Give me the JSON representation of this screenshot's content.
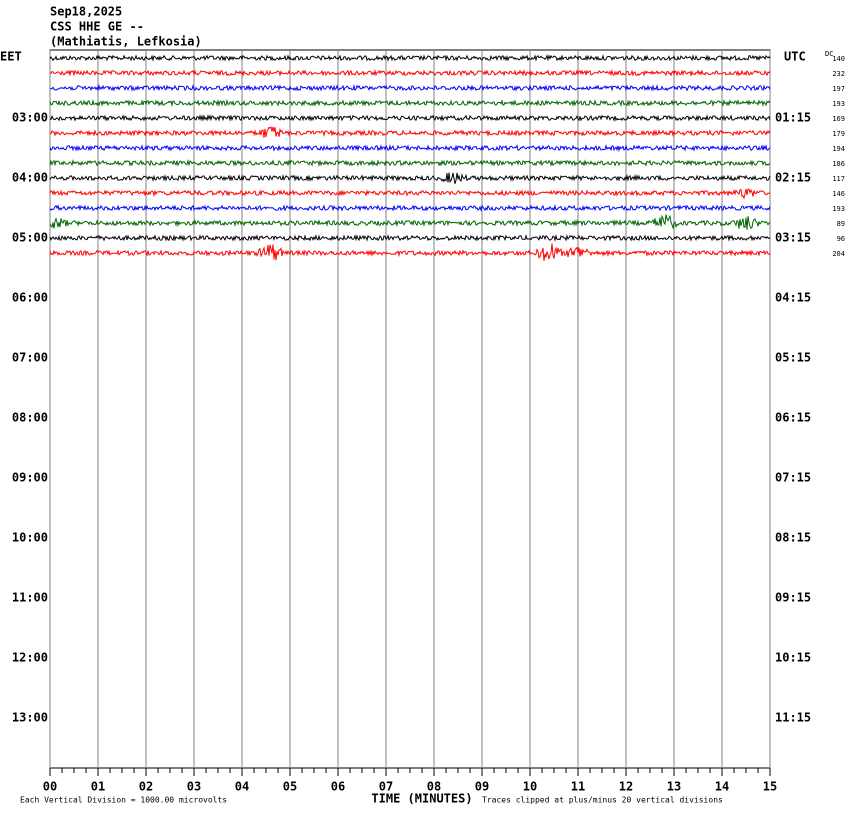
{
  "chart_data": {
    "type": "helicorder",
    "title_lines": [
      "Sep18,2025",
      "CSS HHE GE --",
      "(Mathiatis, Lefkosia)"
    ],
    "left_zone": "EET",
    "right_zone": "UTC",
    "dc_header": "DC",
    "trace_colors": [
      "#000000",
      "#ff0000",
      "#0000ff",
      "#006400"
    ],
    "dc_values": [
      140,
      232,
      197,
      193,
      169,
      179,
      194,
      186,
      117,
      146,
      193,
      89,
      96,
      204
    ],
    "hour_labels": [
      {
        "left": "03:00",
        "right": "01:15"
      },
      {
        "left": "04:00",
        "right": "02:15"
      },
      {
        "left": "05:00",
        "right": "03:15"
      },
      {
        "left": "06:00",
        "right": "04:15"
      },
      {
        "left": "07:00",
        "right": "05:15"
      },
      {
        "left": "08:00",
        "right": "06:15"
      },
      {
        "left": "09:00",
        "right": "07:15"
      },
      {
        "left": "10:00",
        "right": "08:15"
      },
      {
        "left": "11:00",
        "right": "09:15"
      },
      {
        "left": "12:00",
        "right": "10:15"
      },
      {
        "left": "13:00",
        "right": "11:15"
      }
    ],
    "xlim": [
      0,
      15
    ],
    "xticks": [
      {
        "value": 0,
        "label": "00"
      },
      {
        "value": 1,
        "label": "01"
      },
      {
        "value": 2,
        "label": "02"
      },
      {
        "value": 3,
        "label": "03"
      },
      {
        "value": 4,
        "label": "04"
      },
      {
        "value": 5,
        "label": "05"
      },
      {
        "value": 6,
        "label": "06"
      },
      {
        "value": 7,
        "label": "07"
      },
      {
        "value": 8,
        "label": "08"
      },
      {
        "value": 9,
        "label": "09"
      },
      {
        "value": 10,
        "label": "10"
      },
      {
        "value": 11,
        "label": "11"
      },
      {
        "value": 12,
        "label": "12"
      },
      {
        "value": 13,
        "label": "13"
      },
      {
        "value": 14,
        "label": "14"
      },
      {
        "value": 15,
        "label": "15"
      }
    ],
    "xlabel": "TIME (MINUTES)",
    "scale_note": "Each Vertical Division = 1000.00 microvolts",
    "clip_note": "Traces clipped at plus/minus 20 vertical divisions"
  }
}
